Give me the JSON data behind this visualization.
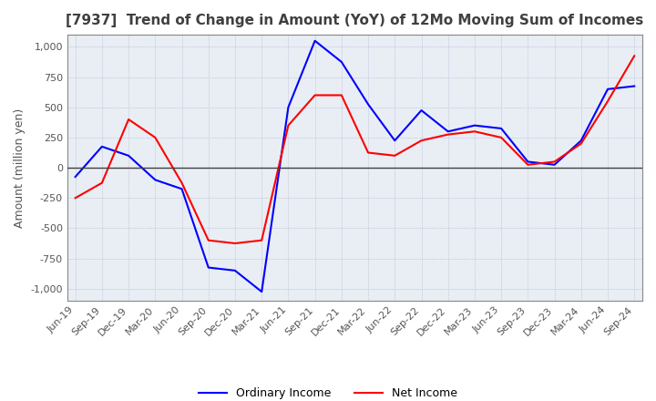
{
  "title": "[7937]  Trend of Change in Amount (YoY) of 12Mo Moving Sum of Incomes",
  "ylabel": "Amount (million yen)",
  "ylim": [
    -1100,
    1100
  ],
  "yticks": [
    -1000,
    -750,
    -500,
    -250,
    0,
    250,
    500,
    750,
    1000
  ],
  "x_labels": [
    "Jun-19",
    "Sep-19",
    "Dec-19",
    "Mar-20",
    "Jun-20",
    "Sep-20",
    "Dec-20",
    "Mar-21",
    "Jun-21",
    "Sep-21",
    "Dec-21",
    "Mar-22",
    "Jun-22",
    "Sep-22",
    "Dec-22",
    "Mar-23",
    "Jun-23",
    "Sep-23",
    "Dec-23",
    "Mar-24",
    "Jun-24",
    "Sep-24"
  ],
  "ordinary_income": [
    -75,
    175,
    100,
    -100,
    -175,
    -825,
    -850,
    -1025,
    500,
    1050,
    875,
    525,
    225,
    475,
    300,
    350,
    325,
    50,
    25,
    225,
    650,
    675
  ],
  "net_income": [
    -250,
    -125,
    400,
    250,
    -125,
    -600,
    -625,
    -600,
    350,
    600,
    600,
    125,
    100,
    225,
    275,
    300,
    250,
    25,
    50,
    200,
    550,
    925
  ],
  "ordinary_color": "#0000FF",
  "net_color": "#FF0000",
  "line_width": 1.5,
  "background_color": "#FFFFFF",
  "plot_bg_color": "#E8EEF4",
  "grid_color": "#AAAACC",
  "title_color": "#404040",
  "zero_line_color": "#404040",
  "legend_labels": [
    "Ordinary Income",
    "Net Income"
  ],
  "title_fontsize": 11,
  "axis_label_fontsize": 9,
  "tick_fontsize": 8
}
